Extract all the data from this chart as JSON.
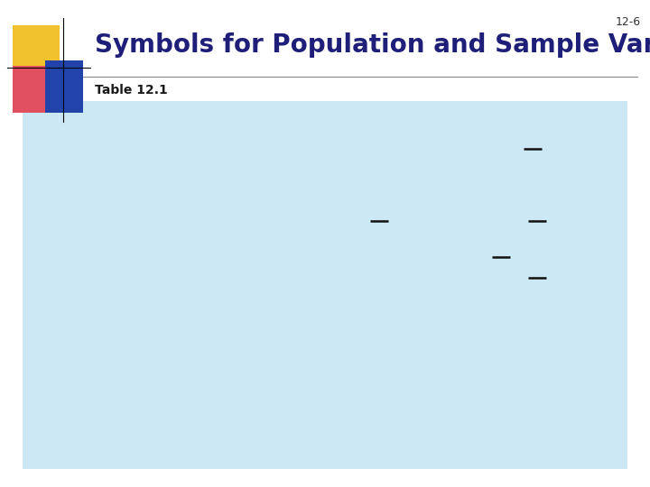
{
  "slide_bg": "#ffffff",
  "content_bg": "#cce8f4",
  "title": "Symbols for Population and Sample Variables",
  "title_color": "#1f1f7a",
  "subtitle": "Table 12.1",
  "subtitle_color": "#1a1a1a",
  "page_num": "12-6",
  "page_num_color": "#333333",
  "logo_yellow": "#f2c12e",
  "logo_red": "#e05060",
  "logo_blue": "#2244aa",
  "title_fontsize": 20,
  "subtitle_fontsize": 10,
  "page_fontsize": 9,
  "dash_color": "#111111"
}
